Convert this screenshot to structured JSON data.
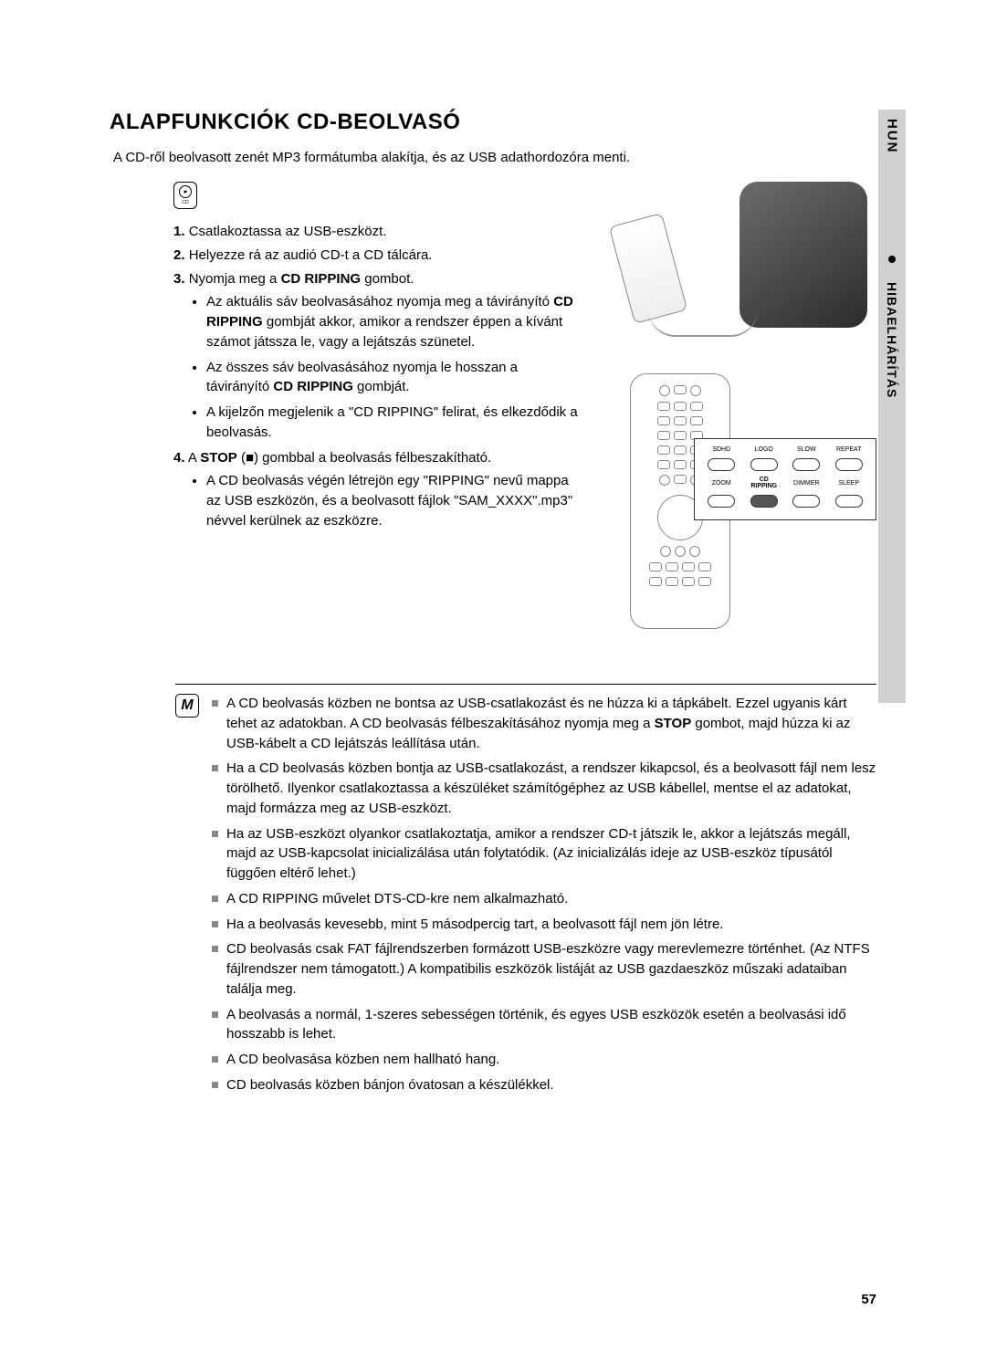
{
  "title": "ALAPFUNKCIÓK CD-BEOLVASÓ",
  "intro": "A CD-ről beolvasott zenét MP3 formátumba alakítja, és az USB adathordozóra menti.",
  "cd_icon_label": "CD",
  "steps": {
    "s1": {
      "num": "1.",
      "text": "Csatlakoztassa az USB-eszközt."
    },
    "s2": {
      "num": "2.",
      "text": "Helyezze rá az audió CD-t a CD tálcára."
    },
    "s3": {
      "num": "3.",
      "pre": "Nyomja meg a ",
      "bold": "CD RIPPING",
      "post": " gombot.",
      "b1a": "Az aktuális sáv beolvasásához nyomja meg a távirányító ",
      "b1b": "CD RIPPING",
      "b1c": " gombját akkor, amikor a rendszer éppen a kívánt számot játssza le, vagy a lejátszás szünetel.",
      "b2a": "Az összes sáv beolvasásához nyomja le hosszan a távirányító ",
      "b2b": "CD RIPPING",
      "b2c": " gombját.",
      "b3": "A kijelzőn megjelenik a \"CD RIPPING\" felirat, és elkezdődik a beolvasás."
    },
    "s4": {
      "num": "4.",
      "pre": "A ",
      "bold": "STOP",
      "mid": " (■) gombbal a beolvasás félbeszakítható.",
      "b1": "A CD beolvasás végén létrejön egy \"RIPPING\" nevű mappa az USB eszközön, és a beolvasott fájlok \"SAM_XXXX\".mp3\" névvel kerülnek az eszközre."
    }
  },
  "callout": {
    "r1": [
      "SDHD",
      "LOGO",
      "SLOW",
      "REPEAT"
    ],
    "r2": [
      "ZOOM",
      "CD RIPPING",
      "DIMMER",
      "SLEEP"
    ]
  },
  "notes": {
    "n1a": "A CD beolvasás közben ne bontsa az USB-csatlakozást és ne húzza ki a tápkábelt. Ezzel ugyanis kárt tehet az adatokban. A CD beolvasás félbeszakításához nyomja meg a ",
    "n1b": "STOP",
    "n1c": " gombot, majd húzza ki az USB-kábelt a CD lejátszás leállítása után.",
    "n2": "Ha a CD beolvasás közben bontja az USB-csatlakozást, a rendszer kikapcsol, és a beolvasott fájl nem lesz törölhető. Ilyenkor csatlakoztassa a készüléket számítógéphez az USB kábellel, mentse el az adatokat, majd formázza meg az USB-eszközt.",
    "n3": "Ha az USB-eszközt olyankor csatlakoztatja, amikor a rendszer CD-t játszik le, akkor a lejátszás megáll, majd az USB-kapcsolat inicializálása után folytatódik. (Az inicializálás ideje az USB-eszköz típusától függően eltérő lehet.)",
    "n4": "A CD RIPPING művelet DTS-CD-kre nem alkalmazható.",
    "n5": "Ha a beolvasás kevesebb, mint 5 másodpercig tart, a beolvasott fájl nem jön létre.",
    "n6": "CD beolvasás csak FAT fájlrendszerben formázott USB-eszközre vagy merevlemezre történhet. (Az NTFS fájlrendszer nem támogatott.) A kompatibilis eszközök listáját az USB gazdaeszköz műszaki adataiban találja meg.",
    "n7": "A beolvasás a normál, 1-szeres sebességen történik, és egyes USB eszközök esetén a beolvasási idő hosszabb is lehet.",
    "n8": "A CD beolvasása közben nem hallható hang.",
    "n9": "CD beolvasás közben bánjon óvatosan a készülékkel."
  },
  "side": {
    "lang": "HUN",
    "section": "HIBAELHÁRÍTÁS"
  },
  "page_number": "57",
  "note_glyph": "M"
}
